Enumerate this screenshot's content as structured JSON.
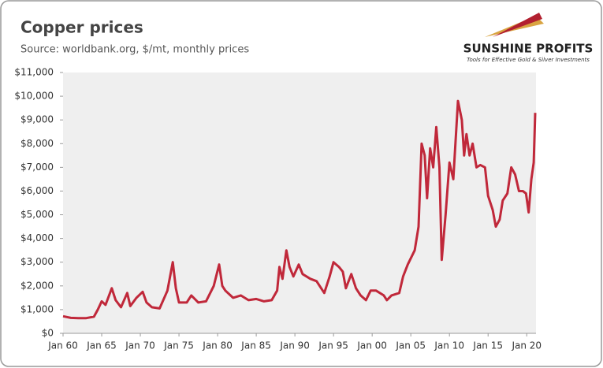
{
  "chart_data": {
    "type": "line",
    "title": "Copper prices",
    "subtitle": "Source: worldbank.org, $/mt, monthly prices",
    "logo_name": "SUNSHINE PROFITS",
    "logo_tagline": "Tools for Effective Gold & Silver Investments",
    "color": "#c0283a",
    "grid": false,
    "xlim": [
      1960,
      2021.2
    ],
    "xticks": [
      {
        "value": 1960,
        "label": "Jan 60"
      },
      {
        "value": 1965,
        "label": "Jan 65"
      },
      {
        "value": 1970,
        "label": "Jan 70"
      },
      {
        "value": 1975,
        "label": "Jan 75"
      },
      {
        "value": 1980,
        "label": "Jan 80"
      },
      {
        "value": 1985,
        "label": "Jan 85"
      },
      {
        "value": 1990,
        "label": "Jan 90"
      },
      {
        "value": 1995,
        "label": "Jan 95"
      },
      {
        "value": 2000,
        "label": "Jan 00"
      },
      {
        "value": 2005,
        "label": "Jan 05"
      },
      {
        "value": 2010,
        "label": "Jan 10"
      },
      {
        "value": 2015,
        "label": "Jan 15"
      },
      {
        "value": 2020,
        "label": "Jan 20"
      }
    ],
    "ylim": [
      0,
      11000
    ],
    "yticks": [
      {
        "value": 0,
        "label": "$0"
      },
      {
        "value": 1000,
        "label": "$1,000"
      },
      {
        "value": 2000,
        "label": "$2,000"
      },
      {
        "value": 3000,
        "label": "$3,000"
      },
      {
        "value": 4000,
        "label": "$4,000"
      },
      {
        "value": 5000,
        "label": "$5,000"
      },
      {
        "value": 6000,
        "label": "$6,000"
      },
      {
        "value": 7000,
        "label": "$7,000"
      },
      {
        "value": 8000,
        "label": "$8,000"
      },
      {
        "value": 9000,
        "label": "$9,000"
      },
      {
        "value": 10000,
        "label": "$10,000"
      },
      {
        "value": 11000,
        "label": "$11,000"
      }
    ],
    "x": [
      1960,
      1961,
      1962,
      1963,
      1964,
      1964.5,
      1965,
      1965.5,
      1966.3,
      1966.8,
      1967.5,
      1968.3,
      1968.7,
      1969.5,
      1970.3,
      1970.8,
      1971.5,
      1972.5,
      1973.5,
      1974.2,
      1974.6,
      1975,
      1976,
      1976.6,
      1977.5,
      1978.5,
      1979.5,
      1980.2,
      1980.6,
      1981,
      1982,
      1983,
      1984,
      1985,
      1986,
      1987,
      1987.7,
      1988,
      1988.4,
      1988.9,
      1989.3,
      1989.8,
      1990.5,
      1991,
      1992,
      1992.8,
      1993.8,
      1994.5,
      1995,
      1995.7,
      1996.2,
      1996.6,
      1997.3,
      1997.9,
      1998.5,
      1999.2,
      1999.8,
      2000.5,
      2001.5,
      2001.9,
      2002.5,
      2003.5,
      2004,
      2004.6,
      2005.5,
      2006,
      2006.4,
      2006.8,
      2007.1,
      2007.5,
      2007.9,
      2008.3,
      2008.7,
      2009,
      2009.5,
      2010,
      2010.5,
      2011.1,
      2011.6,
      2011.9,
      2012.2,
      2012.6,
      2013,
      2013.5,
      2014,
      2014.6,
      2015,
      2015.6,
      2016,
      2016.5,
      2016.9,
      2017.5,
      2018,
      2018.5,
      2019,
      2019.5,
      2019.9,
      2020.25,
      2020.6,
      2020.9,
      2021.1
    ],
    "values": [
      720,
      650,
      640,
      640,
      700,
      1000,
      1350,
      1200,
      1900,
      1400,
      1100,
      1700,
      1150,
      1500,
      1750,
      1300,
      1100,
      1050,
      1800,
      3000,
      1900,
      1300,
      1300,
      1600,
      1300,
      1350,
      2000,
      2900,
      2000,
      1800,
      1500,
      1600,
      1400,
      1450,
      1350,
      1400,
      1800,
      2800,
      2300,
      3500,
      2800,
      2400,
      2900,
      2500,
      2300,
      2200,
      1700,
      2400,
      3000,
      2800,
      2600,
      1900,
      2500,
      1900,
      1600,
      1400,
      1800,
      1800,
      1600,
      1400,
      1600,
      1700,
      2400,
      2900,
      3500,
      4500,
      8000,
      7500,
      5700,
      7800,
      7000,
      8700,
      7000,
      3100,
      5000,
      7200,
      6500,
      9800,
      9000,
      7500,
      8400,
      7500,
      8000,
      7000,
      7100,
      7000,
      5800,
      5200,
      4500,
      4800,
      5600,
      5900,
      7000,
      6700,
      6000,
      6000,
      5900,
      5100,
      6500,
      7200,
      9300
    ]
  }
}
